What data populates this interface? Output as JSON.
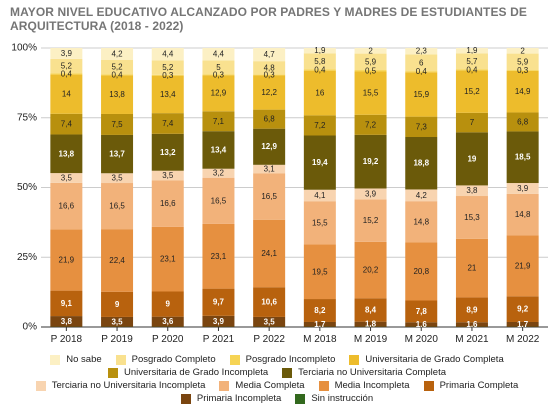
{
  "title": "MAYOR NIVEL EDUCATIVO ALCANZADO POR PADRES Y MADRES DE ESTUDIANTES DE ARQUITECTURA (2018 - 2022)",
  "chart_data": {
    "type": "bar",
    "stacked": true,
    "normalized": true,
    "title": "MAYOR NIVEL EDUCATIVO ALCANZADO POR PADRES Y MADRES DE ESTUDIANTES DE ARQUITECTURA (2018 - 2022)",
    "categories": [
      "P 2018",
      "P 2019",
      "P 2020",
      "P 2021",
      "P 2022",
      "M 2018",
      "M 2019",
      "M 2020",
      "M 2021",
      "M 2022"
    ],
    "y_ticks": [
      "0%",
      "25%",
      "50%",
      "75%",
      "100%"
    ],
    "ylim": [
      0,
      100
    ],
    "legend_position": "bottom",
    "series": [
      {
        "name": "Sin instrucción",
        "color": "#33691e",
        "values": [
          0.1,
          0.1,
          0.1,
          0.1,
          0.1,
          0.1,
          0.1,
          0.1,
          0.1,
          0.1
        ],
        "labels": [
          "",
          "",
          "",
          "",
          "",
          "",
          "",
          "",
          "",
          ""
        ]
      },
      {
        "name": "Primaria Incompleta",
        "color": "#7a4510",
        "values": [
          3.8,
          3.5,
          3.6,
          3.9,
          3.5,
          1.7,
          1.8,
          1.6,
          1.6,
          1.7
        ],
        "labels": [
          "3,8",
          "3,5",
          "3,6",
          "3,9",
          "3,5",
          "1,7",
          "1,8",
          "1,6",
          "1,6",
          "1,7"
        ]
      },
      {
        "name": "Primaria Completa",
        "color": "#b8620e",
        "values": [
          9.1,
          9,
          9,
          9.7,
          10.6,
          8.2,
          8.4,
          7.8,
          8.9,
          9.2
        ],
        "labels": [
          "9,1",
          "9",
          "9",
          "9,7",
          "10,6",
          "8,2",
          "8,4",
          "7,8",
          "8,9",
          "9,2"
        ]
      },
      {
        "name": "Media Incompleta",
        "color": "#e69040",
        "values": [
          21.9,
          22.4,
          23.1,
          23.1,
          24.1,
          19.5,
          20.2,
          20.8,
          21,
          21.9
        ],
        "labels": [
          "21,9",
          "22,4",
          "23,1",
          "23,1",
          "24,1",
          "19,5",
          "20,2",
          "20,8",
          "21",
          "21,9"
        ]
      },
      {
        "name": "Media Completa",
        "color": "#f2b27a",
        "values": [
          16.6,
          16.5,
          16.6,
          16.5,
          16.5,
          15.5,
          15.2,
          14.8,
          15.3,
          14.8
        ],
        "labels": [
          "16,6",
          "16,5",
          "16,6",
          "16,5",
          "16,5",
          "15,5",
          "15,2",
          "14,8",
          "15,3",
          "14,8"
        ]
      },
      {
        "name": "Terciaria no Universitaria Incompleta",
        "color": "#f8d4b0",
        "values": [
          3.5,
          3.5,
          3.5,
          3.2,
          3.1,
          4.1,
          3.9,
          4.2,
          3.8,
          3.9
        ],
        "labels": [
          "3,5",
          "3,5",
          "3,5",
          "3,2",
          "3,1",
          "4,1",
          "3,9",
          "4,2",
          "3,8",
          "3,9"
        ]
      },
      {
        "name": "Terciaria no Universitaria Completa",
        "color": "#6b5a0a",
        "values": [
          13.8,
          13.7,
          13.2,
          13.4,
          12.9,
          19.4,
          19.2,
          18.8,
          19,
          18.5
        ],
        "labels": [
          "13,8",
          "13,7",
          "13,2",
          "13,4",
          "12,9",
          "19,4",
          "19,2",
          "18,8",
          "19",
          "18,5"
        ]
      },
      {
        "name": "Universitaria de Grado Incompleta",
        "color": "#b8900e",
        "values": [
          7.4,
          7.5,
          7.4,
          7.1,
          6.8,
          7.2,
          7.2,
          7.3,
          7,
          6.8
        ],
        "labels": [
          "7,4",
          "7,5",
          "7,4",
          "7,1",
          "6,8",
          "7,2",
          "7,2",
          "7,3",
          "7",
          "6,8"
        ]
      },
      {
        "name": "Universitaria de Grado Completa",
        "color": "#edbc2c",
        "values": [
          14,
          13.8,
          13.4,
          12.9,
          12.2,
          16,
          15.5,
          15.9,
          15.2,
          14.9
        ],
        "labels": [
          "14",
          "13,8",
          "13,4",
          "12,9",
          "12,2",
          "16",
          "15,5",
          "15,9",
          "15,2",
          "14,9"
        ]
      },
      {
        "name": "Posgrado Incompleto",
        "color": "#f6d455",
        "values": [
          0.4,
          0.4,
          0.3,
          0.3,
          0.3,
          0.4,
          0.5,
          0.4,
          0.4,
          0.3
        ],
        "labels": [
          "0,4",
          "0,4",
          "0,3",
          "0,3",
          "0,3",
          "0,4",
          "0,5",
          "0,4",
          "0,4",
          "0,3"
        ]
      },
      {
        "name": "Posgrado Completo",
        "color": "#f9e18f",
        "values": [
          5.2,
          5.2,
          5.2,
          5,
          4.8,
          5.8,
          5.9,
          6,
          5.7,
          5.9
        ],
        "labels": [
          "5,2",
          "5,2",
          "5,2",
          "5",
          "4,8",
          "5,8",
          "5,9",
          "6",
          "5,7",
          "5,9"
        ]
      },
      {
        "name": "No sabe",
        "color": "#fcf0c4",
        "values": [
          3.9,
          4.2,
          4.4,
          4.4,
          4.7,
          1.9,
          2,
          2.3,
          1.9,
          2
        ],
        "labels": [
          "3,9",
          "4,2",
          "4,4",
          "4,4",
          "4,7",
          "1,9",
          "2",
          "2,3",
          "1,9",
          "2"
        ]
      }
    ]
  },
  "legend": {
    "rows": [
      [
        "No sabe",
        "Posgrado Completo",
        "Posgrado Incompleto",
        "Universitaria de Grado Completa"
      ],
      [
        "Universitaria de Grado Incompleta",
        "Terciaria no Universitaria Completa"
      ],
      [
        "Terciaria no Universitaria Incompleta",
        "Media Completa",
        "Media Incompleta",
        "Primaria Completa"
      ],
      [
        "Primaria Incompleta",
        "Sin instrucción"
      ]
    ]
  }
}
